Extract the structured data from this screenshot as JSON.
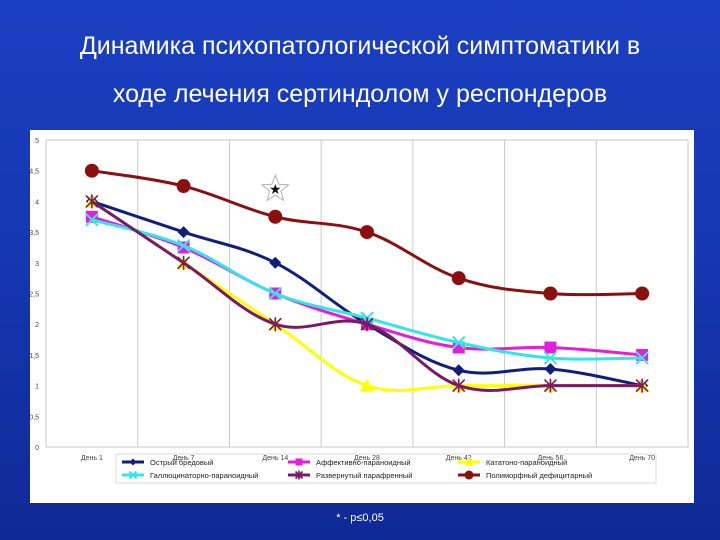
{
  "title_line1": "Динамика психопатологической симптоматики в",
  "title_line2": "ходе лечения сертиндолом у респондеров",
  "footnote": "* - p≤0,05",
  "chart_data": {
    "type": "line",
    "categories": [
      "День 1",
      "День 7",
      "День 14",
      "День 28",
      "День 42",
      "День 56",
      "День 70"
    ],
    "ylim": [
      0,
      5
    ],
    "yticks": [
      "0",
      "0,5",
      "1",
      "1,5",
      "2",
      "2,5",
      "3",
      "3,5",
      "4",
      "4,5",
      "5"
    ],
    "grid": "vertical",
    "legend_position": "bottom",
    "series": [
      {
        "name": "Острый бредовый",
        "color": "#0f1f7a",
        "marker": "diamond",
        "values": [
          4.0,
          3.5,
          3.0,
          2.0,
          1.25,
          1.27,
          1.0
        ]
      },
      {
        "name": "Аффективно-параноидный",
        "color": "#e61ed6",
        "marker": "square",
        "values": [
          3.75,
          3.25,
          2.5,
          2.0,
          1.62,
          1.62,
          1.5
        ]
      },
      {
        "name": "Кататоно-параноидный",
        "color": "#ffff00",
        "marker": "triangle",
        "values": [
          4.0,
          3.0,
          2.0,
          1.0,
          1.0,
          1.0,
          1.0
        ]
      },
      {
        "name": "Галлюцинаторно-параноидный",
        "color": "#33e6e6",
        "marker": "x",
        "values": [
          3.7,
          3.28,
          2.5,
          2.1,
          1.7,
          1.45,
          1.45
        ]
      },
      {
        "name": "Развернутый парафренный",
        "color": "#7a1a66",
        "marker": "star",
        "values": [
          4.0,
          3.0,
          2.0,
          2.0,
          1.0,
          1.0,
          1.0
        ]
      },
      {
        "name": "Полиморфный дефицитарный",
        "color": "#8b0f0f",
        "marker": "circle",
        "values": [
          4.5,
          4.25,
          3.75,
          3.5,
          2.75,
          2.5,
          2.5
        ]
      }
    ],
    "annotations": [
      {
        "text": "★",
        "category": "День 14",
        "y": 4.2
      }
    ]
  }
}
